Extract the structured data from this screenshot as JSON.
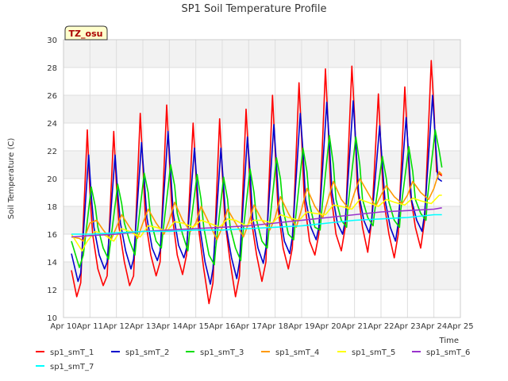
{
  "chart_data": {
    "type": "line",
    "title": "SP1 Soil Temperature Profile",
    "ylabel": "Soil Temperature (C)",
    "xlabel": "Time",
    "ylim": [
      10,
      30
    ],
    "y_ticks": [
      10,
      12,
      14,
      16,
      18,
      20,
      22,
      24,
      26,
      28,
      30
    ],
    "x_range": [
      "Apr 10",
      "Apr 25"
    ],
    "x_ticks": [
      "Apr 10",
      "Apr 11",
      "Apr 12",
      "Apr 13",
      "Apr 14",
      "Apr 15",
      "Apr 16",
      "Apr 17",
      "Apr 18",
      "Apr 19",
      "Apr 20",
      "Apr 21",
      "Apr 22",
      "Apr 23",
      "Apr 24",
      "Apr 25"
    ],
    "grid": true,
    "background_bands": true,
    "legend_position": "bottom",
    "badge": "TZ_osu",
    "series": [
      {
        "name": "sp1_smT_1",
        "color": "#ff0000",
        "x": [
          10.3,
          10.5,
          10.65,
          10.9,
          11.0,
          11.1,
          11.3,
          11.5,
          11.65,
          11.9,
          12.0,
          12.1,
          12.3,
          12.5,
          12.65,
          12.9,
          13.0,
          13.1,
          13.3,
          13.5,
          13.65,
          13.9,
          14.0,
          14.1,
          14.3,
          14.5,
          14.65,
          14.9,
          15.0,
          15.1,
          15.3,
          15.5,
          15.65,
          15.9,
          16.0,
          16.1,
          16.3,
          16.5,
          16.65,
          16.9,
          17.0,
          17.1,
          17.3,
          17.5,
          17.65,
          17.9,
          18.0,
          18.1,
          18.3,
          18.5,
          18.65,
          18.9,
          19.0,
          19.1,
          19.3,
          19.5,
          19.65,
          19.9,
          20.0,
          20.1,
          20.3,
          20.5,
          20.65,
          20.9,
          21.0,
          21.1,
          21.3,
          21.5,
          21.65,
          21.9,
          22.0,
          22.1,
          22.3,
          22.5,
          22.65,
          22.9,
          23.0,
          23.1,
          23.3,
          23.5,
          23.65,
          23.9,
          24.0,
          24.1,
          24.3
        ],
        "y": [
          13.4,
          11.5,
          12.5,
          23.5,
          19.0,
          16.0,
          13.5,
          12.3,
          13.0,
          23.4,
          19.5,
          16.5,
          14.0,
          12.3,
          13.0,
          24.7,
          21.0,
          17.0,
          14.5,
          13.0,
          14.0,
          25.3,
          21.5,
          17.5,
          14.5,
          13.1,
          14.5,
          24.0,
          20.5,
          16.5,
          13.5,
          11.0,
          12.5,
          24.3,
          20.5,
          17.0,
          14.0,
          11.5,
          13.0,
          25.0,
          21.5,
          17.0,
          14.5,
          12.6,
          14.0,
          26.0,
          22.0,
          18.0,
          15.0,
          13.5,
          15.0,
          26.9,
          23.0,
          18.5,
          15.5,
          14.5,
          16.0,
          27.9,
          24.0,
          19.0,
          16.0,
          14.8,
          16.5,
          28.1,
          24.5,
          19.5,
          16.5,
          14.7,
          17.0,
          26.1,
          22.0,
          18.5,
          16.0,
          14.3,
          16.0,
          26.6,
          23.0,
          19.0,
          16.5,
          15.0,
          17.0,
          28.5,
          25.0,
          20.5,
          20.2
        ]
      },
      {
        "name": "sp1_smT_2",
        "color": "#0000cc",
        "x": [
          10.3,
          10.55,
          10.65,
          10.95,
          11.05,
          11.15,
          11.35,
          11.55,
          11.65,
          11.95,
          12.05,
          12.15,
          12.35,
          12.55,
          12.65,
          12.95,
          13.05,
          13.15,
          13.35,
          13.55,
          13.65,
          13.95,
          14.05,
          14.15,
          14.35,
          14.55,
          14.65,
          14.95,
          15.05,
          15.15,
          15.35,
          15.55,
          15.65,
          15.95,
          16.05,
          16.15,
          16.35,
          16.55,
          16.65,
          16.95,
          17.05,
          17.15,
          17.35,
          17.55,
          17.65,
          17.95,
          18.05,
          18.15,
          18.35,
          18.55,
          18.65,
          18.95,
          19.05,
          19.15,
          19.35,
          19.55,
          19.65,
          19.95,
          20.05,
          20.15,
          20.35,
          20.55,
          20.65,
          20.95,
          21.05,
          21.15,
          21.35,
          21.55,
          21.65,
          21.95,
          22.05,
          22.15,
          22.35,
          22.55,
          22.65,
          22.95,
          23.05,
          23.15,
          23.35,
          23.55,
          23.65,
          23.95,
          24.05,
          24.15,
          24.3
        ],
        "y": [
          14.6,
          12.6,
          13.2,
          21.7,
          18.8,
          16.5,
          14.5,
          13.5,
          14.0,
          21.7,
          19.0,
          16.8,
          14.8,
          13.5,
          14.2,
          22.6,
          20.0,
          17.2,
          15.0,
          14.1,
          14.8,
          23.4,
          20.5,
          17.5,
          15.2,
          14.3,
          15.0,
          22.2,
          19.5,
          16.5,
          14.0,
          12.4,
          13.5,
          22.2,
          19.5,
          16.5,
          14.3,
          12.8,
          14.0,
          23.0,
          20.5,
          17.2,
          15.0,
          13.9,
          15.0,
          23.9,
          21.0,
          17.8,
          15.5,
          14.6,
          15.8,
          24.7,
          22.0,
          18.5,
          16.5,
          15.6,
          16.5,
          25.5,
          22.5,
          19.0,
          16.8,
          16.0,
          17.0,
          25.6,
          22.5,
          19.0,
          17.0,
          16.1,
          17.0,
          23.8,
          21.0,
          18.5,
          16.5,
          15.5,
          16.8,
          24.4,
          21.5,
          18.5,
          17.0,
          16.2,
          17.5,
          26.0,
          23.0,
          20.0,
          19.8
        ]
      },
      {
        "name": "sp1_smT_3",
        "color": "#00dd00",
        "x": [
          10.3,
          10.6,
          10.75,
          11.05,
          11.2,
          11.3,
          11.5,
          11.7,
          11.75,
          12.05,
          12.2,
          12.3,
          12.5,
          12.7,
          12.75,
          13.05,
          13.2,
          13.3,
          13.5,
          13.7,
          13.75,
          14.05,
          14.2,
          14.3,
          14.5,
          14.7,
          14.75,
          15.05,
          15.2,
          15.3,
          15.5,
          15.7,
          15.75,
          16.05,
          16.2,
          16.3,
          16.5,
          16.7,
          16.75,
          17.05,
          17.2,
          17.3,
          17.5,
          17.7,
          17.75,
          18.05,
          18.2,
          18.3,
          18.5,
          18.7,
          18.75,
          19.05,
          19.2,
          19.3,
          19.5,
          19.7,
          19.75,
          20.05,
          20.2,
          20.3,
          20.5,
          20.7,
          20.75,
          21.05,
          21.2,
          21.3,
          21.5,
          21.7,
          21.75,
          22.05,
          22.2,
          22.3,
          22.5,
          22.7,
          22.75,
          23.05,
          23.2,
          23.3,
          23.5,
          23.7,
          23.75,
          24.05,
          24.2,
          24.3
        ],
        "y": [
          15.5,
          13.6,
          14.5,
          19.4,
          18.0,
          16.5,
          15.0,
          14.2,
          15.0,
          19.6,
          18.2,
          16.8,
          15.5,
          14.5,
          15.5,
          20.4,
          19.0,
          17.0,
          15.5,
          15.0,
          16.0,
          21.0,
          19.5,
          17.5,
          16.0,
          14.8,
          15.8,
          20.3,
          18.5,
          16.5,
          14.5,
          13.8,
          15.0,
          20.1,
          18.5,
          16.5,
          15.0,
          14.1,
          15.5,
          20.7,
          19.0,
          17.0,
          15.5,
          15.0,
          16.0,
          21.5,
          20.0,
          17.8,
          16.0,
          15.6,
          16.8,
          22.2,
          20.5,
          18.2,
          16.5,
          16.3,
          17.5,
          23.1,
          21.0,
          18.5,
          17.0,
          16.5,
          18.0,
          23.0,
          21.0,
          18.5,
          17.2,
          16.6,
          17.5,
          21.6,
          20.0,
          18.3,
          17.0,
          16.5,
          17.8,
          22.3,
          20.5,
          18.5,
          17.5,
          17.0,
          18.5,
          23.5,
          22.0,
          20.8
        ]
      },
      {
        "name": "sp1_smT_4",
        "color": "#ff9900",
        "x": [
          10.3,
          10.6,
          10.75,
          11.0,
          11.25,
          11.5,
          11.8,
          12.0,
          12.2,
          12.5,
          12.8,
          13.0,
          13.2,
          13.5,
          13.8,
          14.0,
          14.2,
          14.5,
          14.8,
          15.0,
          15.2,
          15.5,
          15.8,
          16.0,
          16.2,
          16.5,
          16.8,
          17.0,
          17.2,
          17.5,
          17.8,
          18.0,
          18.2,
          18.5,
          18.8,
          19.0,
          19.2,
          19.5,
          19.8,
          20.0,
          20.2,
          20.5,
          20.8,
          21.0,
          21.2,
          21.5,
          21.8,
          22.0,
          22.2,
          22.5,
          22.8,
          23.0,
          23.2,
          23.5,
          23.8,
          24.0,
          24.2,
          24.3
        ],
        "y": [
          15.8,
          15.7,
          15.5,
          16.8,
          17.0,
          16.3,
          15.6,
          16.5,
          17.4,
          16.5,
          15.7,
          16.8,
          17.8,
          16.8,
          16.0,
          17.0,
          18.3,
          17.0,
          16.2,
          16.8,
          18.0,
          16.8,
          15.6,
          16.5,
          17.8,
          16.8,
          15.8,
          16.8,
          18.1,
          17.0,
          16.3,
          17.2,
          18.7,
          17.5,
          16.5,
          17.8,
          19.3,
          18.0,
          17.2,
          18.5,
          19.8,
          18.5,
          17.8,
          19.0,
          20.0,
          19.0,
          18.0,
          18.8,
          19.5,
          18.7,
          18.2,
          18.8,
          19.8,
          19.0,
          18.5,
          19.3,
          20.5,
          20.3
        ]
      },
      {
        "name": "sp1_smT_5",
        "color": "#ffff00",
        "x": [
          10.3,
          10.7,
          10.9,
          11.2,
          11.5,
          11.9,
          12.2,
          12.5,
          12.9,
          13.2,
          13.5,
          13.9,
          14.2,
          14.5,
          14.9,
          15.2,
          15.5,
          15.9,
          16.2,
          16.5,
          16.9,
          17.2,
          17.5,
          17.9,
          18.2,
          18.5,
          18.9,
          19.2,
          19.5,
          19.9,
          20.2,
          20.5,
          20.9,
          21.2,
          21.5,
          21.9,
          22.2,
          22.5,
          22.9,
          23.2,
          23.5,
          23.9,
          24.2,
          24.3
        ],
        "y": [
          16.0,
          14.8,
          15.5,
          16.2,
          16.0,
          15.5,
          16.4,
          16.2,
          15.8,
          16.6,
          16.5,
          16.2,
          16.9,
          16.8,
          16.5,
          17.0,
          16.8,
          16.5,
          17.1,
          17.0,
          16.6,
          17.0,
          17.0,
          16.8,
          17.4,
          17.2,
          17.0,
          17.6,
          17.5,
          17.4,
          18.1,
          18.0,
          17.8,
          18.5,
          18.3,
          18.0,
          18.5,
          18.3,
          18.1,
          18.6,
          18.4,
          18.2,
          18.8,
          18.8
        ]
      },
      {
        "name": "sp1_smT_6",
        "color": "#9933cc",
        "x": [
          10.3,
          11.0,
          12.0,
          13.0,
          14.0,
          15.0,
          16.0,
          17.0,
          18.0,
          19.0,
          20.0,
          21.0,
          22.0,
          23.0,
          24.0,
          24.3
        ],
        "y": [
          15.8,
          15.9,
          16.0,
          16.2,
          16.3,
          16.4,
          16.5,
          16.6,
          16.8,
          17.0,
          17.2,
          17.4,
          17.6,
          17.7,
          17.8,
          17.9
        ]
      },
      {
        "name": "sp1_smT_7",
        "color": "#00ffff",
        "x": [
          10.3,
          11.0,
          12.0,
          13.0,
          14.0,
          15.0,
          16.0,
          17.0,
          18.0,
          19.0,
          20.0,
          21.0,
          22.0,
          23.0,
          24.0,
          24.3
        ],
        "y": [
          16.0,
          16.0,
          16.1,
          16.2,
          16.2,
          16.3,
          16.3,
          16.4,
          16.5,
          16.6,
          16.8,
          17.0,
          17.1,
          17.2,
          17.4,
          17.4
        ]
      }
    ]
  }
}
